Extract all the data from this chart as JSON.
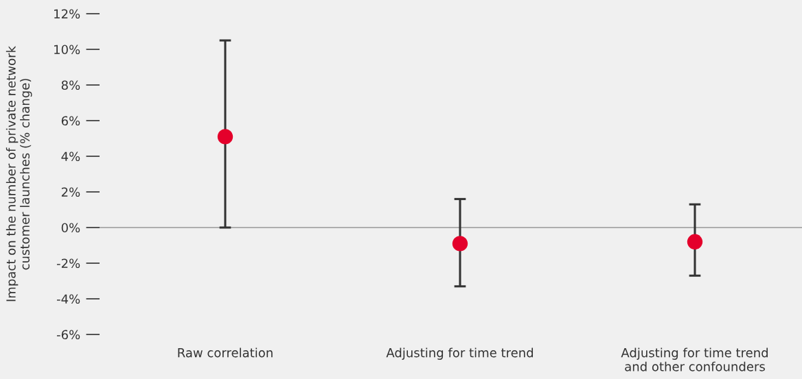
{
  "chart_data": {
    "type": "scatter",
    "ylabel": "Impact on the number of private network\ncustomer launches (% change)",
    "categories": [
      "Raw correlation",
      "Adjusting for time trend",
      "Adjusting for time trend\nand other confounders"
    ],
    "series": [
      {
        "color": "#e4002b",
        "values": [
          5.1,
          -0.9,
          -0.8
        ],
        "errors": [
          [
            0,
            10.5
          ],
          [
            -3.3,
            1.6
          ],
          [
            -2.7,
            1.3
          ]
        ]
      }
    ],
    "ylim": [
      -6,
      12
    ],
    "yticks": [
      {
        "value": -6,
        "label": "-6%"
      },
      {
        "value": -4,
        "label": "-4%"
      },
      {
        "value": -2,
        "label": "-2%"
      },
      {
        "value": 0,
        "label": "0%"
      },
      {
        "value": 2,
        "label": "2%"
      },
      {
        "value": 4,
        "label": "4%"
      },
      {
        "value": 6,
        "label": "6%"
      },
      {
        "value": 8,
        "label": "8%"
      },
      {
        "value": 10,
        "label": "10%"
      },
      {
        "value": 12,
        "label": "12%"
      }
    ],
    "ref_lines": [
      {
        "axis": "y",
        "value": 0,
        "color": "#999999"
      }
    ],
    "marker": "circle",
    "grid": false,
    "legend": false
  }
}
